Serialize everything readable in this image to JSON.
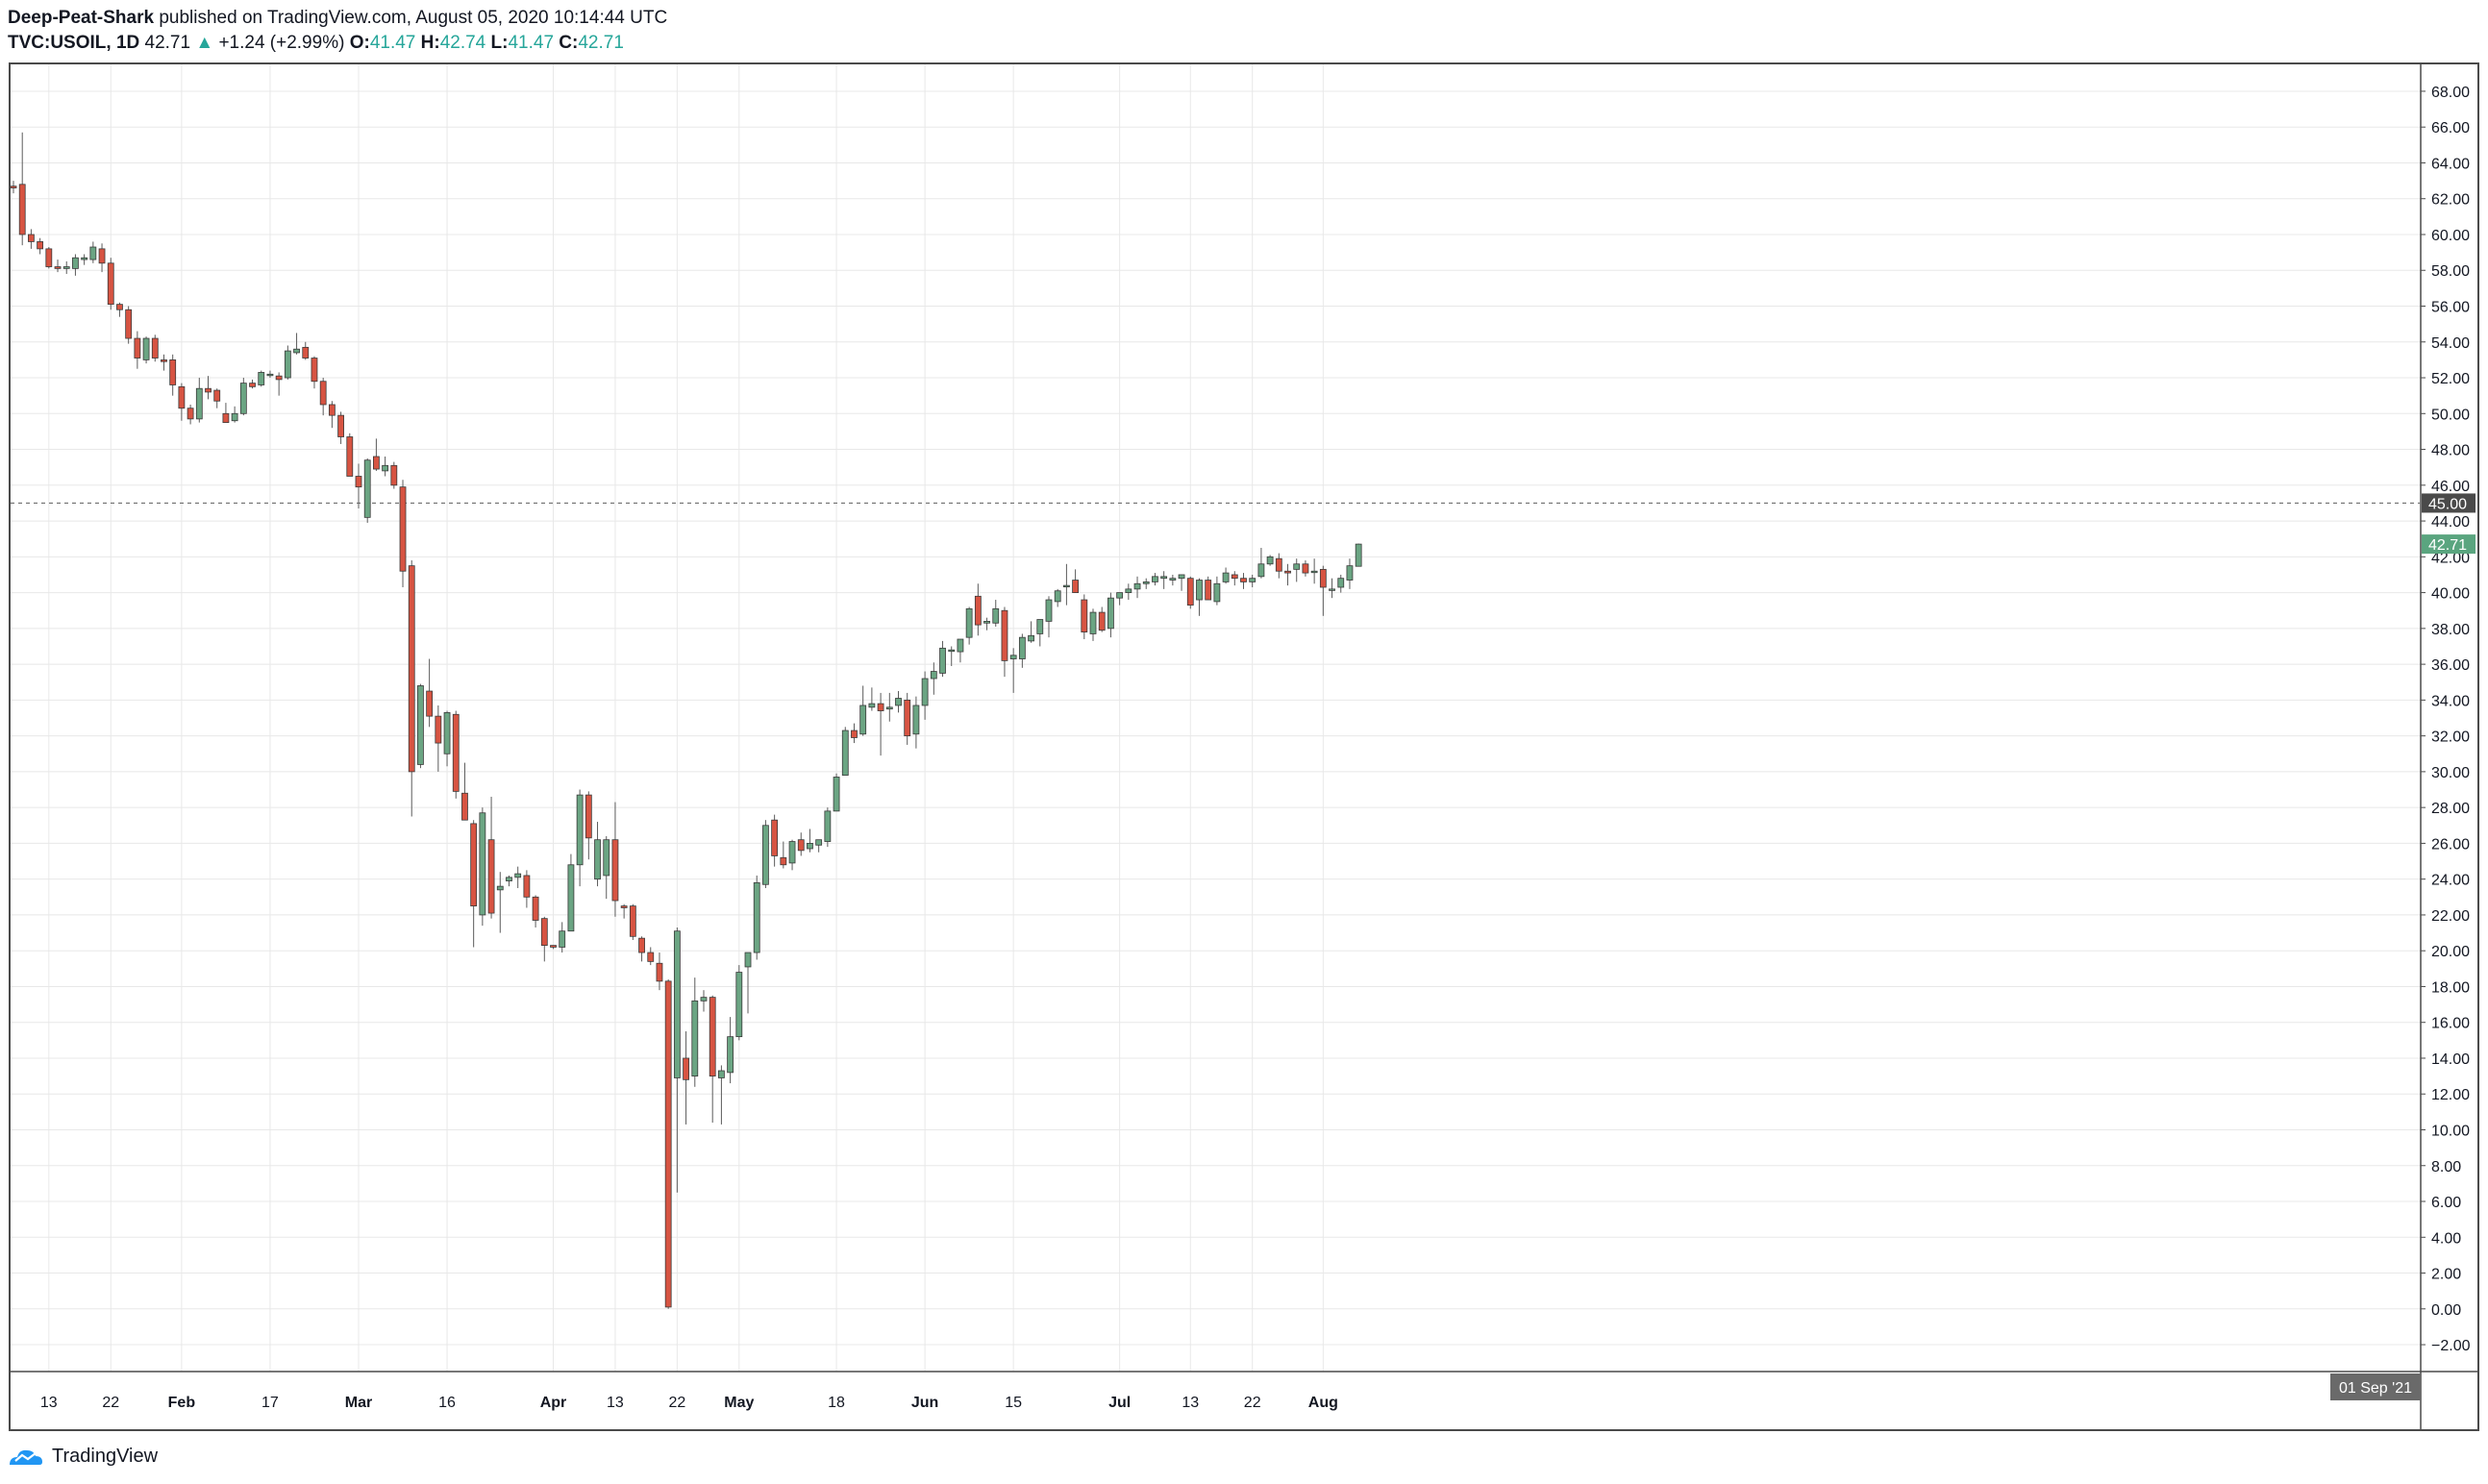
{
  "header": {
    "author": "Deep-Peat-Shark",
    "published_text": "published on TradingView.com, August 05, 2020 10:14:44 UTC",
    "symbol": "TVC:USOIL, 1D",
    "last": "42.71",
    "arrow": "▲",
    "change": "+1.24 (+2.99%)",
    "o_label": "O:",
    "o_value": "41.47",
    "h_label": "H:",
    "h_value": "42.74",
    "l_label": "L:",
    "l_value": "41.47",
    "c_label": "C:",
    "c_value": "42.71"
  },
  "footer": {
    "brand": "TradingView",
    "logo_icon": "tradingview-logo-icon"
  },
  "colors": {
    "up": "#26a69a",
    "up_body": "#6ba583",
    "down_body": "#d75442",
    "wick": "#5b5b5b",
    "grid": "#e8e8e8",
    "last_tag": "#5aa57f",
    "line_tag": "#4a4a4a",
    "date_tag": "#6a6a6a"
  },
  "chart_data": {
    "type": "candlestick",
    "symbol": "TVC:USOIL",
    "interval": "1D",
    "ylim": [
      -3.5,
      69.5
    ],
    "y_ticks": [
      -2,
      0,
      2,
      4,
      6,
      8,
      10,
      12,
      14,
      16,
      18,
      20,
      22,
      24,
      26,
      28,
      30,
      32,
      34,
      36,
      38,
      40,
      42,
      44,
      46,
      48,
      50,
      52,
      54,
      56,
      58,
      60,
      62,
      64,
      66,
      68
    ],
    "y_tick_labels": [
      "−2.00",
      "0.00",
      "2.00",
      "4.00",
      "6.00",
      "8.00",
      "10.00",
      "12.00",
      "14.00",
      "16.00",
      "18.00",
      "20.00",
      "22.00",
      "24.00",
      "26.00",
      "28.00",
      "30.00",
      "32.00",
      "34.00",
      "36.00",
      "38.00",
      "40.00",
      "42.00",
      "44.00",
      "46.00",
      "48.00",
      "50.00",
      "52.00",
      "54.00",
      "56.00",
      "58.00",
      "60.00",
      "62.00",
      "64.00",
      "66.00",
      "68.00"
    ],
    "x_ticks": [
      {
        "label": "13",
        "bar": 4,
        "bold": false
      },
      {
        "label": "22",
        "bar": 11,
        "bold": false
      },
      {
        "label": "Feb",
        "bar": 19,
        "bold": true
      },
      {
        "label": "17",
        "bar": 29,
        "bold": false
      },
      {
        "label": "Mar",
        "bar": 39,
        "bold": true
      },
      {
        "label": "16",
        "bar": 49,
        "bold": false
      },
      {
        "label": "Apr",
        "bar": 61,
        "bold": true
      },
      {
        "label": "13",
        "bar": 68,
        "bold": false
      },
      {
        "label": "22",
        "bar": 75,
        "bold": false
      },
      {
        "label": "May",
        "bar": 82,
        "bold": true
      },
      {
        "label": "18",
        "bar": 93,
        "bold": false
      },
      {
        "label": "Jun",
        "bar": 103,
        "bold": true
      },
      {
        "label": "15",
        "bar": 113,
        "bold": false
      },
      {
        "label": "Jul",
        "bar": 125,
        "bold": true
      },
      {
        "label": "13",
        "bar": 133,
        "bold": false
      },
      {
        "label": "22",
        "bar": 140,
        "bold": false
      },
      {
        "label": "Aug",
        "bar": 148,
        "bold": true
      }
    ],
    "horizontal_line": {
      "value": 45.0,
      "label": "45.00"
    },
    "last_price": {
      "value": 42.71,
      "label": "42.71"
    },
    "date_label": "01 Sep '21",
    "ohlc": [
      [
        62.7,
        63.0,
        62.3,
        62.6
      ],
      [
        62.8,
        65.7,
        59.4,
        60.0
      ],
      [
        60.0,
        60.3,
        59.2,
        59.6
      ],
      [
        59.6,
        59.8,
        58.9,
        59.2
      ],
      [
        59.2,
        59.3,
        58.1,
        58.2
      ],
      [
        58.2,
        58.6,
        57.9,
        58.1
      ],
      [
        58.1,
        58.5,
        57.8,
        58.2
      ],
      [
        58.1,
        58.9,
        57.7,
        58.7
      ],
      [
        58.6,
        58.9,
        58.3,
        58.7
      ],
      [
        58.6,
        59.6,
        58.4,
        59.3
      ],
      [
        59.2,
        59.5,
        57.9,
        58.4
      ],
      [
        58.4,
        58.7,
        55.8,
        56.1
      ],
      [
        56.1,
        56.2,
        55.4,
        55.8
      ],
      [
        55.8,
        56.0,
        53.9,
        54.2
      ],
      [
        54.2,
        54.6,
        52.5,
        53.1
      ],
      [
        53.0,
        54.3,
        52.8,
        54.2
      ],
      [
        54.2,
        54.4,
        52.9,
        53.1
      ],
      [
        53.0,
        53.3,
        52.4,
        52.9
      ],
      [
        53.0,
        53.3,
        51.0,
        51.6
      ],
      [
        51.5,
        51.7,
        49.6,
        50.3
      ],
      [
        50.3,
        50.5,
        49.4,
        49.7
      ],
      [
        49.7,
        52.0,
        49.5,
        51.4
      ],
      [
        51.4,
        52.1,
        50.8,
        51.2
      ],
      [
        51.3,
        51.4,
        50.3,
        50.7
      ],
      [
        50.0,
        50.6,
        49.5,
        49.5
      ],
      [
        49.6,
        50.4,
        49.5,
        50.0
      ],
      [
        50.0,
        52.0,
        49.9,
        51.7
      ],
      [
        51.7,
        51.9,
        51.4,
        51.5
      ],
      [
        51.6,
        52.4,
        51.5,
        52.3
      ],
      [
        52.2,
        52.4,
        52.0,
        52.2
      ],
      [
        52.1,
        52.3,
        51.0,
        51.9
      ],
      [
        52.0,
        53.8,
        51.9,
        53.5
      ],
      [
        53.4,
        54.5,
        53.3,
        53.6
      ],
      [
        53.7,
        54.0,
        53.0,
        53.1
      ],
      [
        53.1,
        53.2,
        51.4,
        51.8
      ],
      [
        51.8,
        52.0,
        49.9,
        50.5
      ],
      [
        50.5,
        50.7,
        49.2,
        49.9
      ],
      [
        49.9,
        50.1,
        48.3,
        48.7
      ],
      [
        48.7,
        48.9,
        46.6,
        46.5
      ],
      [
        46.5,
        47.2,
        44.7,
        45.9
      ],
      [
        44.2,
        47.5,
        43.9,
        47.4
      ],
      [
        47.6,
        48.6,
        46.8,
        46.9
      ],
      [
        46.8,
        47.6,
        46.5,
        47.1
      ],
      [
        47.1,
        47.3,
        45.8,
        46.0
      ],
      [
        45.9,
        46.3,
        40.3,
        41.2
      ],
      [
        41.5,
        41.8,
        27.5,
        30.0
      ],
      [
        30.4,
        34.9,
        30.2,
        34.8
      ],
      [
        34.5,
        36.3,
        32.5,
        33.1
      ],
      [
        33.1,
        33.7,
        30.0,
        31.6
      ],
      [
        31.0,
        33.4,
        30.3,
        33.3
      ],
      [
        33.2,
        33.4,
        28.5,
        28.9
      ],
      [
        28.8,
        30.5,
        27.5,
        27.3
      ],
      [
        27.1,
        27.3,
        20.2,
        22.5
      ],
      [
        22.0,
        28.0,
        21.4,
        27.7
      ],
      [
        26.2,
        28.6,
        21.8,
        22.1
      ],
      [
        23.4,
        24.4,
        21.0,
        23.6
      ],
      [
        23.9,
        24.2,
        23.6,
        24.1
      ],
      [
        24.1,
        24.7,
        23.5,
        24.3
      ],
      [
        24.2,
        24.5,
        22.4,
        23.0
      ],
      [
        23.0,
        23.1,
        21.3,
        21.7
      ],
      [
        21.8,
        21.9,
        19.4,
        20.3
      ],
      [
        20.3,
        20.3,
        20.1,
        20.2
      ],
      [
        20.2,
        21.6,
        19.9,
        21.1
      ],
      [
        21.1,
        25.4,
        21.1,
        24.8
      ],
      [
        24.8,
        29.0,
        23.6,
        28.7
      ],
      [
        28.7,
        28.9,
        25.1,
        26.3
      ],
      [
        24.0,
        27.2,
        23.6,
        26.2
      ],
      [
        24.2,
        26.4,
        22.9,
        26.2
      ],
      [
        26.2,
        28.3,
        21.9,
        22.8
      ],
      [
        22.5,
        22.6,
        21.8,
        22.4
      ],
      [
        22.5,
        22.6,
        20.6,
        20.8
      ],
      [
        20.7,
        20.8,
        19.4,
        19.9
      ],
      [
        19.9,
        20.2,
        19.2,
        19.4
      ],
      [
        19.3,
        19.9,
        17.8,
        18.3
      ],
      [
        18.3,
        18.4,
        0.0,
        0.1
      ],
      [
        12.9,
        21.3,
        6.5,
        21.1
      ],
      [
        14.0,
        15.5,
        10.3,
        12.8
      ],
      [
        13.0,
        18.5,
        12.4,
        17.2
      ],
      [
        17.2,
        17.8,
        16.6,
        17.4
      ],
      [
        17.4,
        17.5,
        10.4,
        13.0
      ],
      [
        12.9,
        13.6,
        10.3,
        13.3
      ],
      [
        13.2,
        16.3,
        12.6,
        15.2
      ],
      [
        15.2,
        19.2,
        15.0,
        18.8
      ],
      [
        19.1,
        19.9,
        16.5,
        19.9
      ],
      [
        19.9,
        24.2,
        19.5,
        23.8
      ],
      [
        23.7,
        27.3,
        23.5,
        27.0
      ],
      [
        27.3,
        27.6,
        24.7,
        25.3
      ],
      [
        25.2,
        26.1,
        24.6,
        24.8
      ],
      [
        24.9,
        26.2,
        24.5,
        26.1
      ],
      [
        26.2,
        26.6,
        25.3,
        25.6
      ],
      [
        25.7,
        26.8,
        25.5,
        26.0
      ],
      [
        25.9,
        26.1,
        25.5,
        26.2
      ],
      [
        26.1,
        28.0,
        25.8,
        27.8
      ],
      [
        27.8,
        29.9,
        27.8,
        29.7
      ],
      [
        29.8,
        32.5,
        29.9,
        32.3
      ],
      [
        32.3,
        32.7,
        31.6,
        31.9
      ],
      [
        32.1,
        34.8,
        32.0,
        33.7
      ],
      [
        33.6,
        34.7,
        33.4,
        33.8
      ],
      [
        33.8,
        34.4,
        30.9,
        33.4
      ],
      [
        33.5,
        34.4,
        32.8,
        33.6
      ],
      [
        33.7,
        34.5,
        33.3,
        34.1
      ],
      [
        34.0,
        34.4,
        31.5,
        32.0
      ],
      [
        32.1,
        34.2,
        31.3,
        33.7
      ],
      [
        33.7,
        35.6,
        32.9,
        35.2
      ],
      [
        35.2,
        36.1,
        34.3,
        35.6
      ],
      [
        35.5,
        37.3,
        35.3,
        36.9
      ],
      [
        36.8,
        37.0,
        35.9,
        36.8
      ],
      [
        36.7,
        37.3,
        36.1,
        37.4
      ],
      [
        37.5,
        39.2,
        37.1,
        39.1
      ],
      [
        39.8,
        40.5,
        37.6,
        38.2
      ],
      [
        38.3,
        38.6,
        37.9,
        38.4
      ],
      [
        38.3,
        39.6,
        38.1,
        39.1
      ],
      [
        39.0,
        39.2,
        35.3,
        36.2
      ],
      [
        36.3,
        36.9,
        34.4,
        36.5
      ],
      [
        36.3,
        37.7,
        35.8,
        37.5
      ],
      [
        37.3,
        38.4,
        37.2,
        37.6
      ],
      [
        37.7,
        38.5,
        37.0,
        38.5
      ],
      [
        38.4,
        39.8,
        37.5,
        39.6
      ],
      [
        39.5,
        40.2,
        39.2,
        40.1
      ],
      [
        40.4,
        41.6,
        39.3,
        40.4
      ],
      [
        40.7,
        41.3,
        40.1,
        40.0
      ],
      [
        39.6,
        39.9,
        37.4,
        37.8
      ],
      [
        37.7,
        39.1,
        37.3,
        38.9
      ],
      [
        38.9,
        39.2,
        37.8,
        37.9
      ],
      [
        38.0,
        40.0,
        37.5,
        39.7
      ],
      [
        39.7,
        39.9,
        39.3,
        40.0
      ],
      [
        40.0,
        40.5,
        39.6,
        40.2
      ],
      [
        40.2,
        40.9,
        39.7,
        40.5
      ],
      [
        40.5,
        40.8,
        40.2,
        40.6
      ],
      [
        40.6,
        41.1,
        40.4,
        40.9
      ],
      [
        40.8,
        41.2,
        40.2,
        40.9
      ],
      [
        40.7,
        41.0,
        40.4,
        40.8
      ],
      [
        40.8,
        41.0,
        40.1,
        41.0
      ],
      [
        40.8,
        40.9,
        39.1,
        39.3
      ],
      [
        39.6,
        40.8,
        38.7,
        40.7
      ],
      [
        40.7,
        40.9,
        39.6,
        39.6
      ],
      [
        39.5,
        40.9,
        39.3,
        40.5
      ],
      [
        40.6,
        41.4,
        40.5,
        41.1
      ],
      [
        41.0,
        41.2,
        40.4,
        40.8
      ],
      [
        40.8,
        41.1,
        40.2,
        40.6
      ],
      [
        40.6,
        41.0,
        40.3,
        40.8
      ],
      [
        40.9,
        42.5,
        40.8,
        41.6
      ],
      [
        41.6,
        42.1,
        41.5,
        42.0
      ],
      [
        41.9,
        42.2,
        40.8,
        41.2
      ],
      [
        41.2,
        41.6,
        40.4,
        41.1
      ],
      [
        41.3,
        41.9,
        40.6,
        41.6
      ],
      [
        41.6,
        41.8,
        40.9,
        41.1
      ],
      [
        41.2,
        41.9,
        40.5,
        41.2
      ],
      [
        41.3,
        41.5,
        38.7,
        40.3
      ],
      [
        40.2,
        40.8,
        39.7,
        40.2
      ],
      [
        40.3,
        41.0,
        40.0,
        40.8
      ],
      [
        40.7,
        41.9,
        40.2,
        41.5
      ],
      [
        41.47,
        42.74,
        41.47,
        42.71
      ]
    ]
  }
}
